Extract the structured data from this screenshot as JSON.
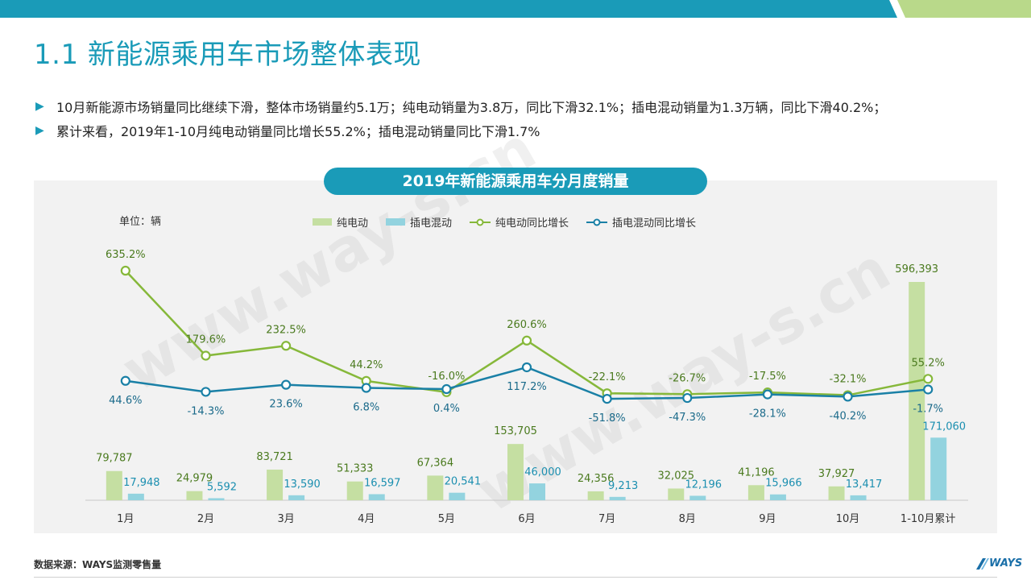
{
  "title": "1.1 新能源乘用车市场整体表现",
  "bullets": [
    "10月新能源市场销量同比继续下滑，整体市场销量约5.1万；纯电动销量为3.8万，同比下滑32.1%；插电混动销量为1.3万辆，同比下滑40.2%；",
    "累计来看，2019年1-10月纯电动销量同比增长55.2%；插电混动销量同比下滑1.7%"
  ],
  "bullet_icon": "triangle-right-icon",
  "source": "数据来源：WAYS监测零售量",
  "logo_text": "WAYS",
  "watermark": "www.way-s.cn",
  "colors": {
    "accent": "#1a9bb8",
    "bev_bar": "#c5dfa2",
    "phev_bar": "#93d3df",
    "bev_line": "#86b83a",
    "phev_line": "#1a80a6",
    "bev_label": "#4a7a1e",
    "phev_label": "#1b8fb0"
  },
  "chart_data": {
    "type": "bar",
    "title": "2019年新能源乘用车分月度销量",
    "unit_label": "单位：辆",
    "categories": [
      "1月",
      "2月",
      "3月",
      "4月",
      "5月",
      "6月",
      "7月",
      "8月",
      "9月",
      "10月",
      "1-10月累计"
    ],
    "series": [
      {
        "name": "纯电动",
        "kind": "bar",
        "values": [
          79787,
          24979,
          83721,
          51333,
          67364,
          153705,
          24356,
          32025,
          41196,
          37927,
          596393
        ],
        "labels": [
          "79,787",
          "24,979",
          "83,721",
          "51,333",
          "67,364",
          "153,705",
          "24,356",
          "32,025",
          "41,196",
          "37,927",
          "596,393"
        ]
      },
      {
        "name": "插电混动",
        "kind": "bar",
        "values": [
          17948,
          5592,
          13590,
          16597,
          20541,
          46000,
          9213,
          12196,
          15966,
          13417,
          171060
        ],
        "labels": [
          "17,948",
          "5,592",
          "13,590",
          "16,597",
          "20,541",
          "46,000",
          "9,213",
          "12,196",
          "15,966",
          "13,417",
          "171,060"
        ]
      },
      {
        "name": "纯电动同比增长",
        "kind": "line",
        "values": [
          635.2,
          179.6,
          232.5,
          44.2,
          -16.0,
          260.6,
          -22.1,
          -26.7,
          -17.5,
          -32.1,
          55.2
        ],
        "labels": [
          "635.2%",
          "179.6%",
          "232.5%",
          "44.2%",
          "-16.0%",
          "260.6%",
          "-22.1%",
          "-26.7%",
          "-17.5%",
          "-32.1%",
          "55.2%"
        ]
      },
      {
        "name": "插电混动同比增长",
        "kind": "line",
        "values": [
          44.6,
          -14.3,
          23.6,
          6.8,
          0.4,
          117.2,
          -51.8,
          -47.3,
          -28.1,
          -40.2,
          -1.7
        ],
        "labels": [
          "44.6%",
          "-14.3%",
          "23.6%",
          "6.8%",
          "0.4%",
          "117.2%",
          "-51.8%",
          "-47.3%",
          "-28.1%",
          "-40.2%",
          "-1.7%"
        ]
      }
    ],
    "ylim_bars": [
      0,
      620000
    ],
    "ylim_growth": [
      -60,
      700
    ],
    "legend_position": "top-center",
    "grid": false
  }
}
